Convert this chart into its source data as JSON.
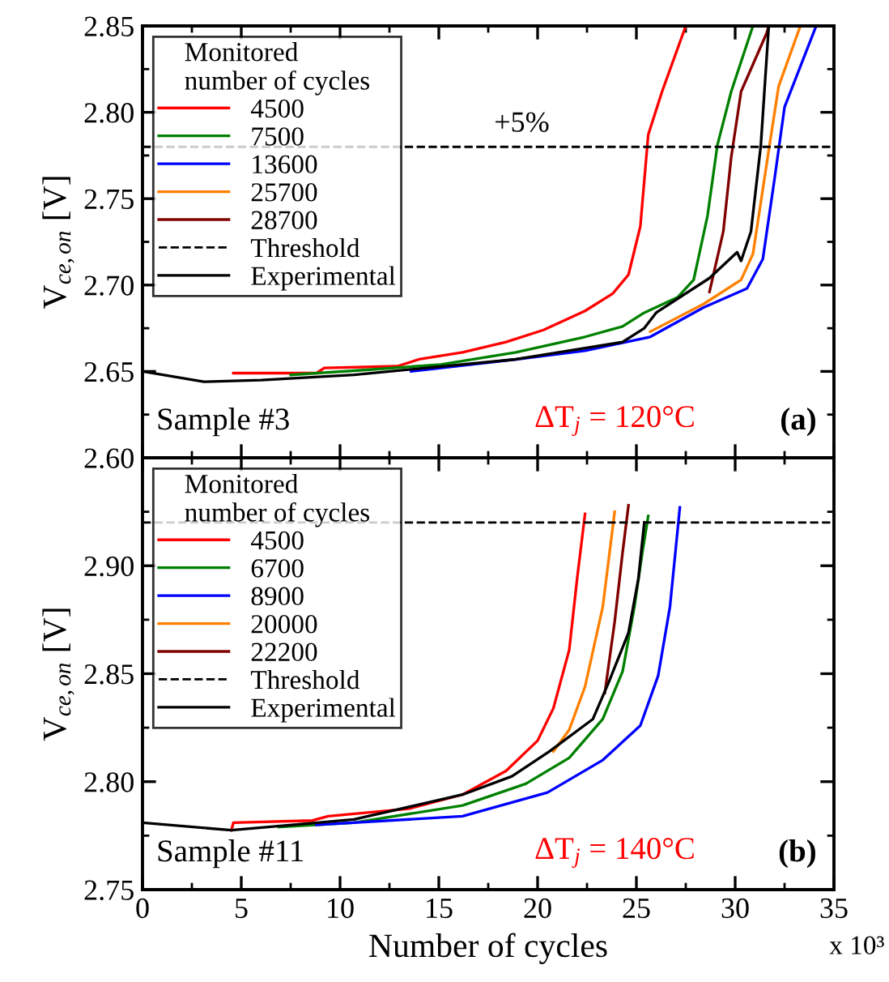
{
  "chart_data": [
    {
      "type": "line",
      "ylabel": "V$_{ce,on}$ [V]",
      "legend_title": "Monitored\nnumber of cycles",
      "legend": "top left",
      "tick_labels": "y",
      "xlim": [
        0,
        35
      ],
      "xticks": [
        0,
        5,
        10,
        15,
        20,
        25,
        30,
        35
      ],
      "ylim": [
        2.6,
        2.85
      ],
      "yticks": [
        {
          "value": 2.6,
          "label": "2.60"
        },
        2.65,
        {
          "value": 2.7,
          "label": "2.70"
        },
        2.75,
        {
          "value": 2.8,
          "label": "2.80"
        },
        2.85
      ],
      "series": [
        {
          "name": "4500",
          "color": "#ff0000",
          "x": [
            4.6,
            8.8,
            9.2,
            12.9,
            14.0,
            16.2,
            18.4,
            20.3,
            22.4,
            23.8,
            24.6,
            25.2,
            25.6,
            26.3,
            27.5
          ],
          "values": [
            2.649,
            2.649,
            2.652,
            2.653,
            2.657,
            2.661,
            2.667,
            2.674,
            2.685,
            2.695,
            2.706,
            2.734,
            2.787,
            2.812,
            2.85
          ]
        },
        {
          "name": "7500",
          "color": "#008000",
          "x": [
            7.5,
            11.5,
            15.1,
            18.9,
            22.4,
            24.3,
            25.4,
            27.1,
            27.9,
            28.6,
            29.1,
            29.8,
            30.9
          ],
          "values": [
            2.648,
            2.651,
            2.654,
            2.661,
            2.67,
            2.676,
            2.684,
            2.693,
            2.703,
            2.74,
            2.781,
            2.812,
            2.85
          ]
        },
        {
          "name": "13600",
          "color": "#0000ff",
          "x": [
            13.6,
            18.9,
            22.4,
            25.7,
            28.4,
            30.6,
            31.4,
            32.0,
            32.5,
            34.1
          ],
          "values": [
            2.65,
            2.657,
            2.662,
            2.67,
            2.687,
            2.698,
            2.715,
            2.762,
            2.803,
            2.85
          ]
        },
        {
          "name": "25700",
          "color": "#ff8000",
          "x": [
            25.7,
            28.4,
            30.3,
            30.9,
            31.7,
            32.2,
            33.3
          ],
          "values": [
            2.673,
            2.689,
            2.703,
            2.718,
            2.778,
            2.815,
            2.85
          ]
        },
        {
          "name": "28700",
          "color": "#800000",
          "x": [
            28.7,
            29.4,
            29.8,
            30.3,
            31.6,
            31.7
          ],
          "values": [
            2.696,
            2.731,
            2.774,
            2.812,
            2.846,
            2.85
          ]
        },
        {
          "name": "Experimental",
          "color": "#000000",
          "x": [
            0,
            3.1,
            6.0,
            10.7,
            18.9,
            24.3,
            25.4,
            26.0,
            28.7,
            30.1,
            30.3,
            30.8,
            31.3,
            31.7
          ],
          "values": [
            2.65,
            2.644,
            2.645,
            2.648,
            2.657,
            2.667,
            2.675,
            2.684,
            2.704,
            2.719,
            2.714,
            2.731,
            2.781,
            2.85
          ]
        }
      ],
      "ref_lines": [
        {
          "axis": "y",
          "value": 2.78,
          "label": "Threshold",
          "color": "#000000",
          "line_style": "dashed"
        }
      ],
      "annotations": [
        {
          "text": "+5%",
          "x": 19.2,
          "y": 2.78
        },
        "Sample #3",
        "ΔT$_{j}$ = 120°C",
        "(a)"
      ]
    },
    {
      "type": "line",
      "xlabel": "Number of cycles",
      "ylabel": "V$_{ce,on}$ [V]",
      "legend_title": "Monitored\nnumber of cycles",
      "legend": "top left",
      "xlim": [
        0,
        35
      ],
      "xticks": [
        0,
        5,
        10,
        15,
        20,
        25,
        30,
        35
      ],
      "ylim": [
        2.75,
        2.95
      ],
      "yticks": [
        2.75,
        {
          "value": 2.8,
          "label": "2.80"
        },
        2.85,
        {
          "value": 2.9,
          "label": "2.90"
        }
      ],
      "series": [
        {
          "name": "4500",
          "color": "#ff0000",
          "x": [
            4.5,
            4.6,
            8.6,
            9.4,
            13.5,
            16.2,
            18.4,
            20.0,
            20.8,
            21.6,
            22.0,
            22.4
          ],
          "values": [
            2.7775,
            2.781,
            2.782,
            2.784,
            2.7875,
            2.794,
            2.805,
            2.819,
            2.834,
            2.861,
            2.894,
            2.924
          ]
        },
        {
          "name": "6700",
          "color": "#008000",
          "x": [
            6.9,
            10.7,
            16.2,
            19.4,
            21.6,
            23.3,
            24.3,
            24.9,
            25.3,
            25.6
          ],
          "values": [
            2.779,
            2.781,
            2.789,
            2.799,
            2.811,
            2.829,
            2.851,
            2.881,
            2.906,
            2.923
          ]
        },
        {
          "name": "8900",
          "color": "#0000ff",
          "x": [
            8.8,
            16.2,
            20.5,
            23.3,
            25.2,
            26.1,
            26.7,
            27.2
          ],
          "values": [
            2.78,
            2.784,
            2.795,
            2.81,
            2.826,
            2.849,
            2.881,
            2.927
          ]
        },
        {
          "name": "20000",
          "color": "#ff8000",
          "x": [
            20.8,
            21.6,
            22.4,
            23.3,
            23.9
          ],
          "values": [
            2.814,
            2.824,
            2.844,
            2.881,
            2.925
          ]
        },
        {
          "name": "22200",
          "color": "#800000",
          "x": [
            23.4,
            23.9,
            24.3,
            24.6
          ],
          "values": [
            2.841,
            2.874,
            2.906,
            2.928
          ]
        },
        {
          "name": "Experimental",
          "color": "#000000",
          "x": [
            0,
            4.5,
            10.7,
            16.2,
            18.7,
            20.6,
            22.8,
            23.6,
            24.6,
            25.1,
            25.4
          ],
          "values": [
            2.781,
            2.7775,
            2.7825,
            2.794,
            2.8025,
            2.814,
            2.829,
            2.846,
            2.869,
            2.894,
            2.92
          ]
        }
      ],
      "ref_lines": [
        {
          "axis": "y",
          "value": 2.92,
          "label": "Threshold",
          "color": "#000000",
          "line_style": "dashed"
        }
      ],
      "annotations": [
        "x 10³",
        "Sample #11",
        "ΔT$_{j}$ = 140°C",
        "(b)"
      ]
    }
  ]
}
